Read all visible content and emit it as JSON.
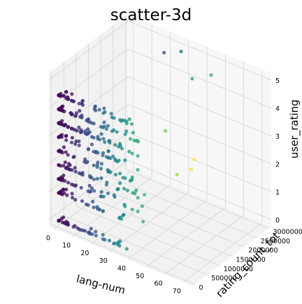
{
  "chart_data": {
    "type": "scatter",
    "title": "scatter-3d",
    "xlabel": "lang-num",
    "ylabel": "rating_count_tot",
    "zlabel": "user_rating",
    "xlim": [
      -3,
      75
    ],
    "ylim": [
      -100000,
      3100000
    ],
    "zlim": [
      -0.25,
      5.25
    ],
    "xticks": [
      0,
      10,
      20,
      30,
      40,
      50,
      60,
      70
    ],
    "xticklabels": [
      "0",
      "10",
      "20",
      "30",
      "40",
      "50",
      "60",
      "70"
    ],
    "yticks": [
      0,
      500000,
      1000000,
      1500000,
      2000000,
      2500000,
      3000000
    ],
    "yticklabels": [
      "0",
      "500000",
      "1000000",
      "1500000",
      "2000000",
      "2500000",
      "3000000"
    ],
    "zticks": [
      0,
      1,
      2,
      3,
      4,
      5
    ],
    "zticklabels": [
      "0",
      "1",
      "2",
      "3",
      "4",
      "5"
    ],
    "grid": true,
    "colormap": "viridis",
    "color_by": "lang-num",
    "colors": [
      "#440154",
      "#3b528b",
      "#21918c",
      "#5ec962",
      "#fde725"
    ],
    "z_levels": [
      0,
      1,
      1.5,
      2,
      2.5,
      3,
      3.5,
      4,
      4.5
    ],
    "points_sample": [
      {
        "x": 1,
        "y": 20000,
        "z": 4.5
      },
      {
        "x": 12,
        "y": 50000,
        "z": 4.0
      },
      {
        "x": 27,
        "y": 100000,
        "z": 3.5
      },
      {
        "x": 35,
        "y": 150000,
        "z": 3.0
      },
      {
        "x": 45,
        "y": 200000,
        "z": 2.0
      },
      {
        "x": 55,
        "y": 300000,
        "z": 4.5
      },
      {
        "x": 60,
        "y": 400000,
        "z": 3.0
      },
      {
        "x": 69,
        "y": 300000,
        "z": 3.5
      },
      {
        "x": 72,
        "y": 200000,
        "z": 4.0
      },
      {
        "x": 40,
        "y": 2500000,
        "z": 4.5
      },
      {
        "x": 45,
        "y": 2900000,
        "z": 4.5
      },
      {
        "x": 30,
        "y": 2800000,
        "z": 5.0
      },
      {
        "x": 18,
        "y": 3000000,
        "z": 4.5
      }
    ]
  }
}
